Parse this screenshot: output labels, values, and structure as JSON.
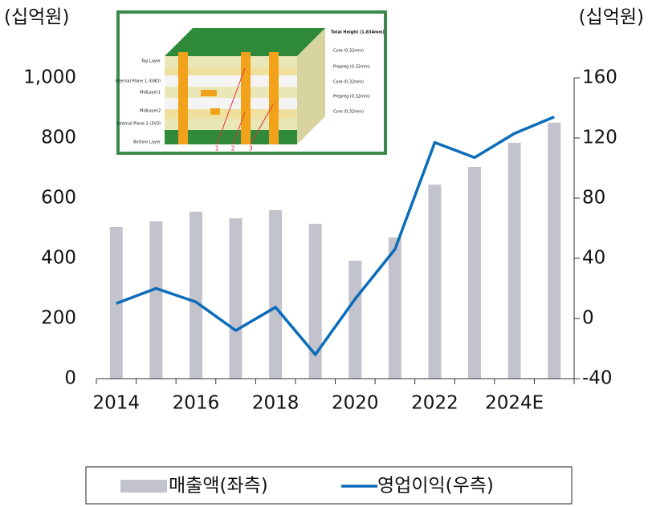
{
  "chart_data": {
    "type": "combo",
    "ylabel": "(십억원)",
    "y2label": "(십억원)",
    "categories": [
      "2014",
      null,
      "2016",
      null,
      "2018",
      null,
      "2020",
      null,
      "2022",
      null,
      "2024E",
      null
    ],
    "series": [
      {
        "name": "매출액(좌측)",
        "type": "bar",
        "color": "#c2c3cd",
        "values": [
          504,
          523,
          555,
          533,
          560,
          515,
          392,
          469,
          645,
          704,
          784,
          851
        ]
      },
      {
        "name": "영업이익(우측)",
        "type": "line",
        "axis": "y2",
        "color": "#0b6cb9",
        "values": [
          10,
          20,
          11,
          -8,
          7.5,
          -24,
          13,
          46,
          117,
          107,
          123,
          134
        ]
      }
    ],
    "ylim": [
      0,
      1000
    ],
    "yticks": [
      0,
      200,
      400,
      600,
      800,
      {
        "value": 1000,
        "label": "1,000"
      }
    ],
    "y2lim": [
      -40,
      160
    ],
    "y2ticks": [
      -40,
      0,
      40,
      80,
      120,
      160
    ],
    "legend": "bottom"
  },
  "inset": {
    "left_labels": [
      "Top Layer",
      "Internal Plane 1 (GND)",
      "MidLayer1",
      "MidLayer2",
      "Internal Plane 2 (3V3)",
      "Bottom Layer"
    ],
    "right_labels": [
      "Total Height (1.834mm)",
      "Core (0.32mm)",
      "Prepreg (0.32mm)",
      "Core (0.32mm)",
      "Prepreg (0.32mm)",
      "Core (0.32mm)"
    ],
    "markers": [
      "1",
      "2",
      "3"
    ]
  }
}
